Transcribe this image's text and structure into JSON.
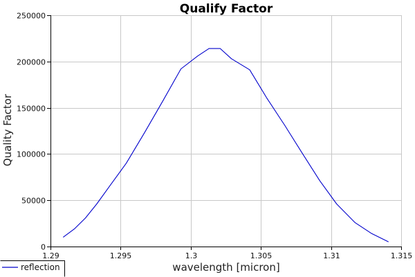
{
  "chart_data": {
    "type": "line",
    "title": "Qualify Factor",
    "xlabel": "wavelength [micron]",
    "ylabel": "Quality Factor",
    "xlim": [
      1.29,
      1.315
    ],
    "ylim": [
      0,
      250000
    ],
    "x_ticks": [
      1.29,
      1.295,
      1.3,
      1.305,
      1.31,
      1.315
    ],
    "x_tick_labels": [
      "1.29",
      "1.295",
      "1.3",
      "1.305",
      "1.31",
      "1.315"
    ],
    "y_ticks": [
      0,
      50000,
      100000,
      150000,
      200000,
      250000
    ],
    "y_tick_labels": [
      "0",
      "50000",
      "100000",
      "150000",
      "200000",
      "250000"
    ],
    "grid": true,
    "legend_position": "bottom-left",
    "series": [
      {
        "name": "reflection",
        "color": "#0000cc",
        "x": [
          1.2909,
          1.2917,
          1.2925,
          1.2933,
          1.2942,
          1.2954,
          1.2967,
          1.298,
          1.2993,
          1.3005,
          1.3013,
          1.3021,
          1.3029,
          1.3042,
          1.3054,
          1.3067,
          1.3079,
          1.3092,
          1.3104,
          1.3117,
          1.3129,
          1.3141
        ],
        "y": [
          10000,
          19000,
          31000,
          46000,
          65000,
          90000,
          123000,
          157000,
          192000,
          206000,
          214000,
          214000,
          203000,
          191000,
          161000,
          131000,
          102000,
          71000,
          46000,
          26000,
          14000,
          5000
        ]
      }
    ]
  }
}
